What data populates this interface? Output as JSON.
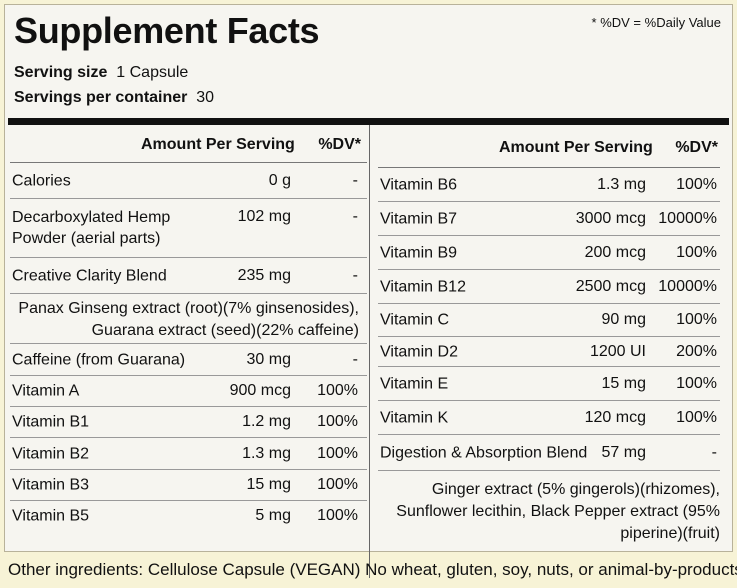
{
  "title": "Supplement Facts",
  "dv_note": "* %DV = %Daily Value",
  "serving_size_label": "Serving size",
  "serving_size_value": "1 Capsule",
  "servings_label": "Servings per container",
  "servings_value": "30",
  "header": {
    "amount": "Amount Per Serving",
    "dv": "%DV*"
  },
  "left_rows": [
    {
      "name": "Calories",
      "amount": "0 g",
      "dv": "-"
    },
    {
      "name": "Decarboxylated Hemp Powder (aerial parts)",
      "amount": "102 mg",
      "dv": "-"
    },
    {
      "name": "Creative Clarity Blend",
      "amount": "235 mg",
      "dv": "-"
    },
    {
      "name": "Caffeine (from Guarana)",
      "amount": "30 mg",
      "dv": "-"
    },
    {
      "name": "Vitamin A",
      "amount": "900 mcg",
      "dv": "100%"
    },
    {
      "name": "Vitamin B1",
      "amount": "1.2 mg",
      "dv": "100%"
    },
    {
      "name": "Vitamin B2",
      "amount": "1.3 mg",
      "dv": "100%"
    },
    {
      "name": "Vitamin B3",
      "amount": "15 mg",
      "dv": "100%"
    },
    {
      "name": "Vitamin B5",
      "amount": "5 mg",
      "dv": "100%"
    }
  ],
  "left_blend_desc": "Panax Ginseng extract (root)(7% ginsenosides), Guarana extract (seed)(22% caffeine)",
  "right_rows": [
    {
      "name": "Vitamin B6",
      "amount": "1.3 mg",
      "dv": "100%"
    },
    {
      "name": "Vitamin B7",
      "amount": "3000 mcg",
      "dv": "10000%"
    },
    {
      "name": "Vitamin B9",
      "amount": "200 mcg",
      "dv": "100%"
    },
    {
      "name": "Vitamin B12",
      "amount": "2500 mcg",
      "dv": "10000%"
    },
    {
      "name": "Vitamin C",
      "amount": "90 mg",
      "dv": "100%"
    },
    {
      "name": "Vitamin D2",
      "amount": "1200 UI",
      "dv": "200%"
    },
    {
      "name": "Vitamin E",
      "amount": "15 mg",
      "dv": "100%"
    },
    {
      "name": "Vitamin K",
      "amount": "120 mcg",
      "dv": "100%"
    },
    {
      "name": "Digestion & Absorption Blend",
      "amount": "57 mg",
      "dv": "-"
    }
  ],
  "right_blend_desc": "Ginger extract (5% gingerols)(rhizomes), Sunflower lecithin, Black Pepper extract (95% piperine)(fruit)",
  "other_ingredients": "Other ingredients: Cellulose Capsule  (VEGAN) No wheat, gluten, soy, nuts, or animal-by-products"
}
